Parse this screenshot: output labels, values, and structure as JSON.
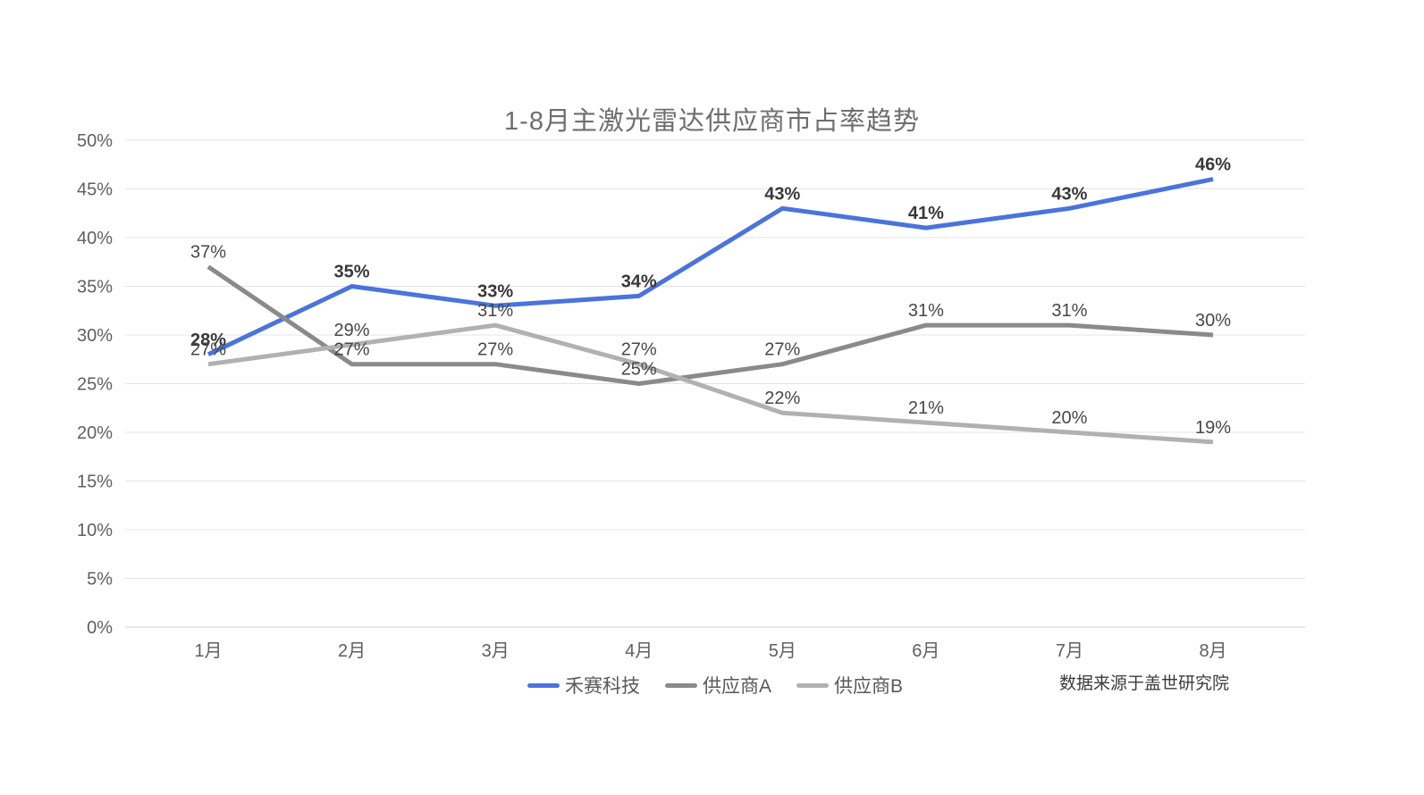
{
  "title": "1-8月主激光雷达供应商市占率趋势",
  "source_note": "数据来源于盖世研究院",
  "colors": {
    "hesai_blue": "#4a73dd",
    "supplier_a_gray": "#8a8a8a",
    "supplier_b_gray": "#b1b1b1",
    "gridline": "#e4e4e4",
    "axis_line": "#cfcfcf",
    "axis_text": "#5f5f5f",
    "title_text": "#6e6e6e",
    "data_label": "#474747",
    "data_label_bold": "#383838"
  },
  "chart_data": {
    "type": "line",
    "title": "1-8月主激光雷达供应商市占率趋势",
    "categories": [
      "1月",
      "2月",
      "3月",
      "4月",
      "5月",
      "6月",
      "7月",
      "8月"
    ],
    "series": [
      {
        "name": "禾赛科技",
        "values": [
          28,
          35,
          33,
          34,
          43,
          41,
          43,
          46
        ],
        "color": "#4a73dd",
        "bold_labels": true
      },
      {
        "name": "供应商A",
        "values": [
          37,
          27,
          27,
          25,
          27,
          31,
          31,
          30
        ],
        "color": "#8a8a8a",
        "bold_labels": false
      },
      {
        "name": "供应商B",
        "values": [
          27,
          29,
          31,
          27,
          22,
          21,
          20,
          19
        ],
        "color": "#b1b1b1",
        "bold_labels": false
      }
    ],
    "xlabel": "",
    "ylabel": "",
    "ylim": [
      0,
      50
    ],
    "ytick_step": 5,
    "y_tick_labels": [
      "0%",
      "5%",
      "10%",
      "15%",
      "20%",
      "25%",
      "30%",
      "35%",
      "40%",
      "45%",
      "50%"
    ],
    "ytick_suffix": "%",
    "label_suffix": "%",
    "grid": true,
    "legend_position": "bottom",
    "data_labels_shown": true
  }
}
